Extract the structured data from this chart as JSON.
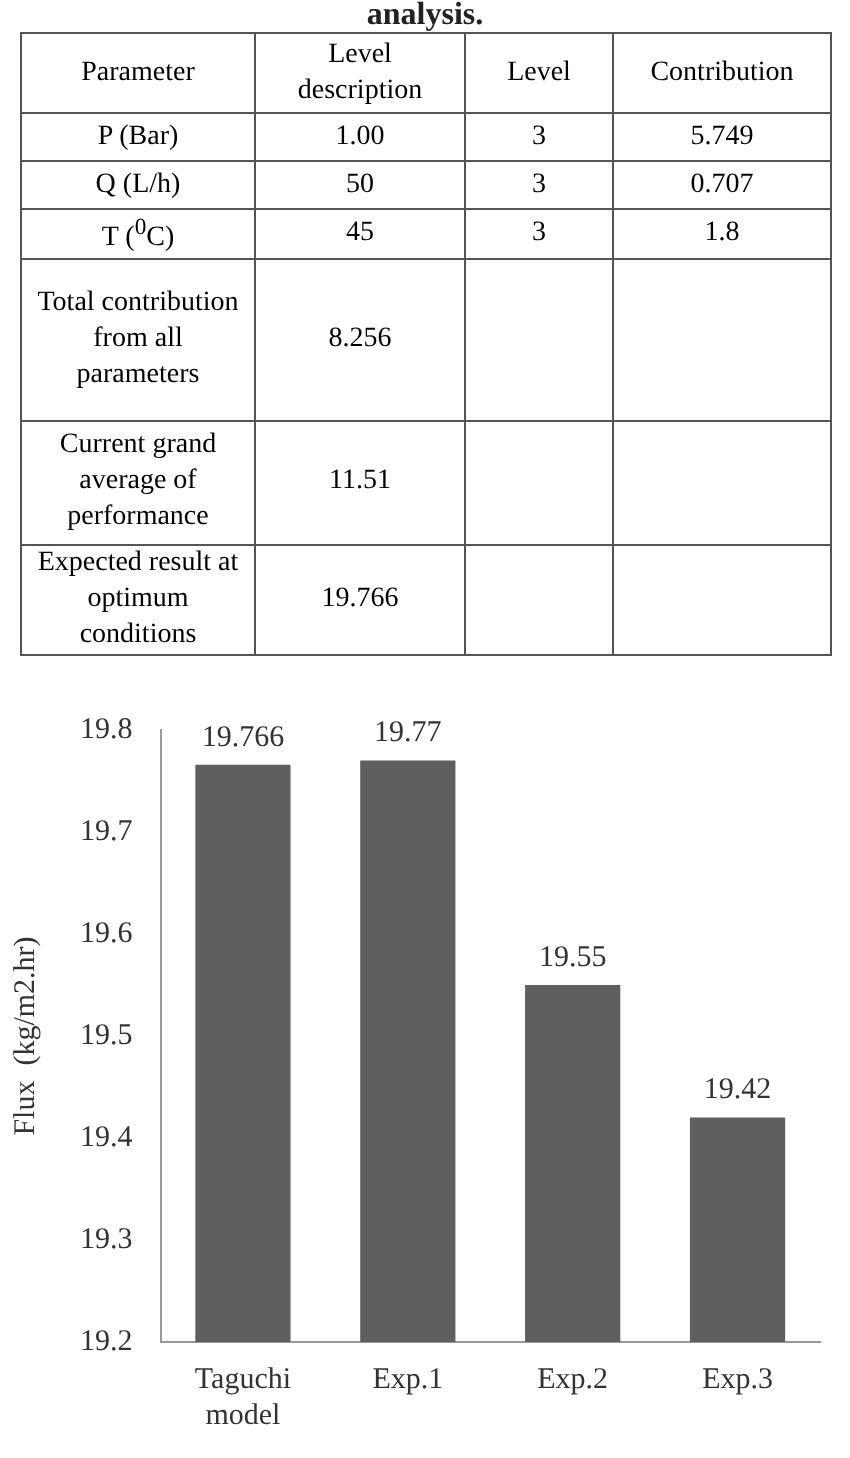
{
  "chart_data": [
    {
      "type": "other",
      "title": "analysis.",
      "categories": [
        "Parameter",
        "Level description",
        "Level",
        "Contribution"
      ],
      "cell_labels": [
        [
          "P (Bar)",
          "1.00",
          "3",
          "5.749"
        ],
        [
          "Q (L/h)",
          "50",
          "3",
          "0.707"
        ],
        [
          "T ($^{0}$C)",
          "45",
          "3",
          "1.8"
        ],
        [
          "Total contribution from all parameters",
          "8.256",
          null,
          null
        ],
        [
          "Current grand average of performance",
          "11.51",
          null,
          null
        ],
        [
          "Expected result at optimum conditions",
          "19.766",
          null,
          null
        ]
      ]
    },
    {
      "type": "bar",
      "categories": [
        "Taguchi model",
        "Exp.1",
        "Exp.2",
        "Exp.3"
      ],
      "values": [
        19.766,
        19.77,
        19.55,
        19.42
      ],
      "color": "#5f5f5f",
      "ylabel": "Flux  (kg/m2.hr)",
      "ylim": [
        19.2,
        19.8
      ],
      "yticks": [
        19.2,
        19.3,
        19.4,
        19.5,
        19.6,
        19.7,
        19.8
      ],
      "data_labels": true,
      "grid": false
    }
  ]
}
